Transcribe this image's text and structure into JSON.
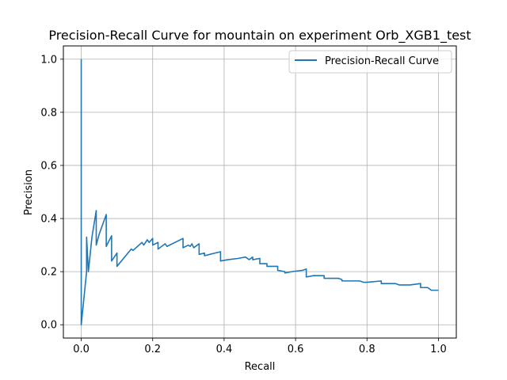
{
  "chart_data": {
    "type": "line",
    "title": "Precision-Recall Curve for mountain on experiment Orb_XGB1_test",
    "xlabel": "Recall",
    "ylabel": "Precision",
    "xlim": [
      -0.05,
      1.05
    ],
    "ylim": [
      -0.05,
      1.05
    ],
    "xticks": [
      0.0,
      0.2,
      0.4,
      0.6,
      0.8,
      1.0
    ],
    "yticks": [
      0.0,
      0.2,
      0.4,
      0.6,
      0.8,
      1.0
    ],
    "xtick_labels": [
      "0.0",
      "0.2",
      "0.4",
      "0.6",
      "0.8",
      "1.0"
    ],
    "ytick_labels": [
      "0.0",
      "0.2",
      "0.4",
      "0.6",
      "0.8",
      "1.0"
    ],
    "grid": true,
    "legend_position": "top-right",
    "series": [
      {
        "name": "Precision-Recall Curve",
        "color": "#1f77b4",
        "points": [
          [
            0.0,
            1.0
          ],
          [
            0.0,
            0.0
          ],
          [
            0.015,
            0.2
          ],
          [
            0.015,
            0.33
          ],
          [
            0.02,
            0.2
          ],
          [
            0.03,
            0.33
          ],
          [
            0.042,
            0.43
          ],
          [
            0.042,
            0.3
          ],
          [
            0.05,
            0.34
          ],
          [
            0.07,
            0.415
          ],
          [
            0.07,
            0.295
          ],
          [
            0.085,
            0.335
          ],
          [
            0.085,
            0.24
          ],
          [
            0.1,
            0.27
          ],
          [
            0.1,
            0.22
          ],
          [
            0.14,
            0.285
          ],
          [
            0.145,
            0.28
          ],
          [
            0.17,
            0.31
          ],
          [
            0.175,
            0.3
          ],
          [
            0.185,
            0.32
          ],
          [
            0.19,
            0.31
          ],
          [
            0.2,
            0.325
          ],
          [
            0.2,
            0.3
          ],
          [
            0.215,
            0.31
          ],
          [
            0.215,
            0.285
          ],
          [
            0.235,
            0.305
          ],
          [
            0.24,
            0.295
          ],
          [
            0.285,
            0.325
          ],
          [
            0.285,
            0.29
          ],
          [
            0.3,
            0.3
          ],
          [
            0.305,
            0.295
          ],
          [
            0.31,
            0.305
          ],
          [
            0.315,
            0.29
          ],
          [
            0.33,
            0.305
          ],
          [
            0.33,
            0.265
          ],
          [
            0.345,
            0.27
          ],
          [
            0.345,
            0.26
          ],
          [
            0.36,
            0.265
          ],
          [
            0.375,
            0.27
          ],
          [
            0.39,
            0.275
          ],
          [
            0.39,
            0.24
          ],
          [
            0.41,
            0.245
          ],
          [
            0.44,
            0.25
          ],
          [
            0.46,
            0.255
          ],
          [
            0.47,
            0.245
          ],
          [
            0.48,
            0.255
          ],
          [
            0.48,
            0.245
          ],
          [
            0.5,
            0.25
          ],
          [
            0.5,
            0.23
          ],
          [
            0.52,
            0.23
          ],
          [
            0.52,
            0.22
          ],
          [
            0.55,
            0.22
          ],
          [
            0.55,
            0.205
          ],
          [
            0.57,
            0.2
          ],
          [
            0.57,
            0.195
          ],
          [
            0.59,
            0.2
          ],
          [
            0.62,
            0.205
          ],
          [
            0.63,
            0.21
          ],
          [
            0.63,
            0.18
          ],
          [
            0.65,
            0.185
          ],
          [
            0.68,
            0.185
          ],
          [
            0.68,
            0.175
          ],
          [
            0.72,
            0.175
          ],
          [
            0.73,
            0.17
          ],
          [
            0.73,
            0.165
          ],
          [
            0.76,
            0.165
          ],
          [
            0.78,
            0.165
          ],
          [
            0.79,
            0.16
          ],
          [
            0.8,
            0.16
          ],
          [
            0.84,
            0.165
          ],
          [
            0.84,
            0.155
          ],
          [
            0.88,
            0.155
          ],
          [
            0.89,
            0.15
          ],
          [
            0.92,
            0.15
          ],
          [
            0.95,
            0.155
          ],
          [
            0.95,
            0.14
          ],
          [
            0.97,
            0.14
          ],
          [
            0.98,
            0.13
          ],
          [
            1.0,
            0.13
          ]
        ]
      }
    ]
  }
}
